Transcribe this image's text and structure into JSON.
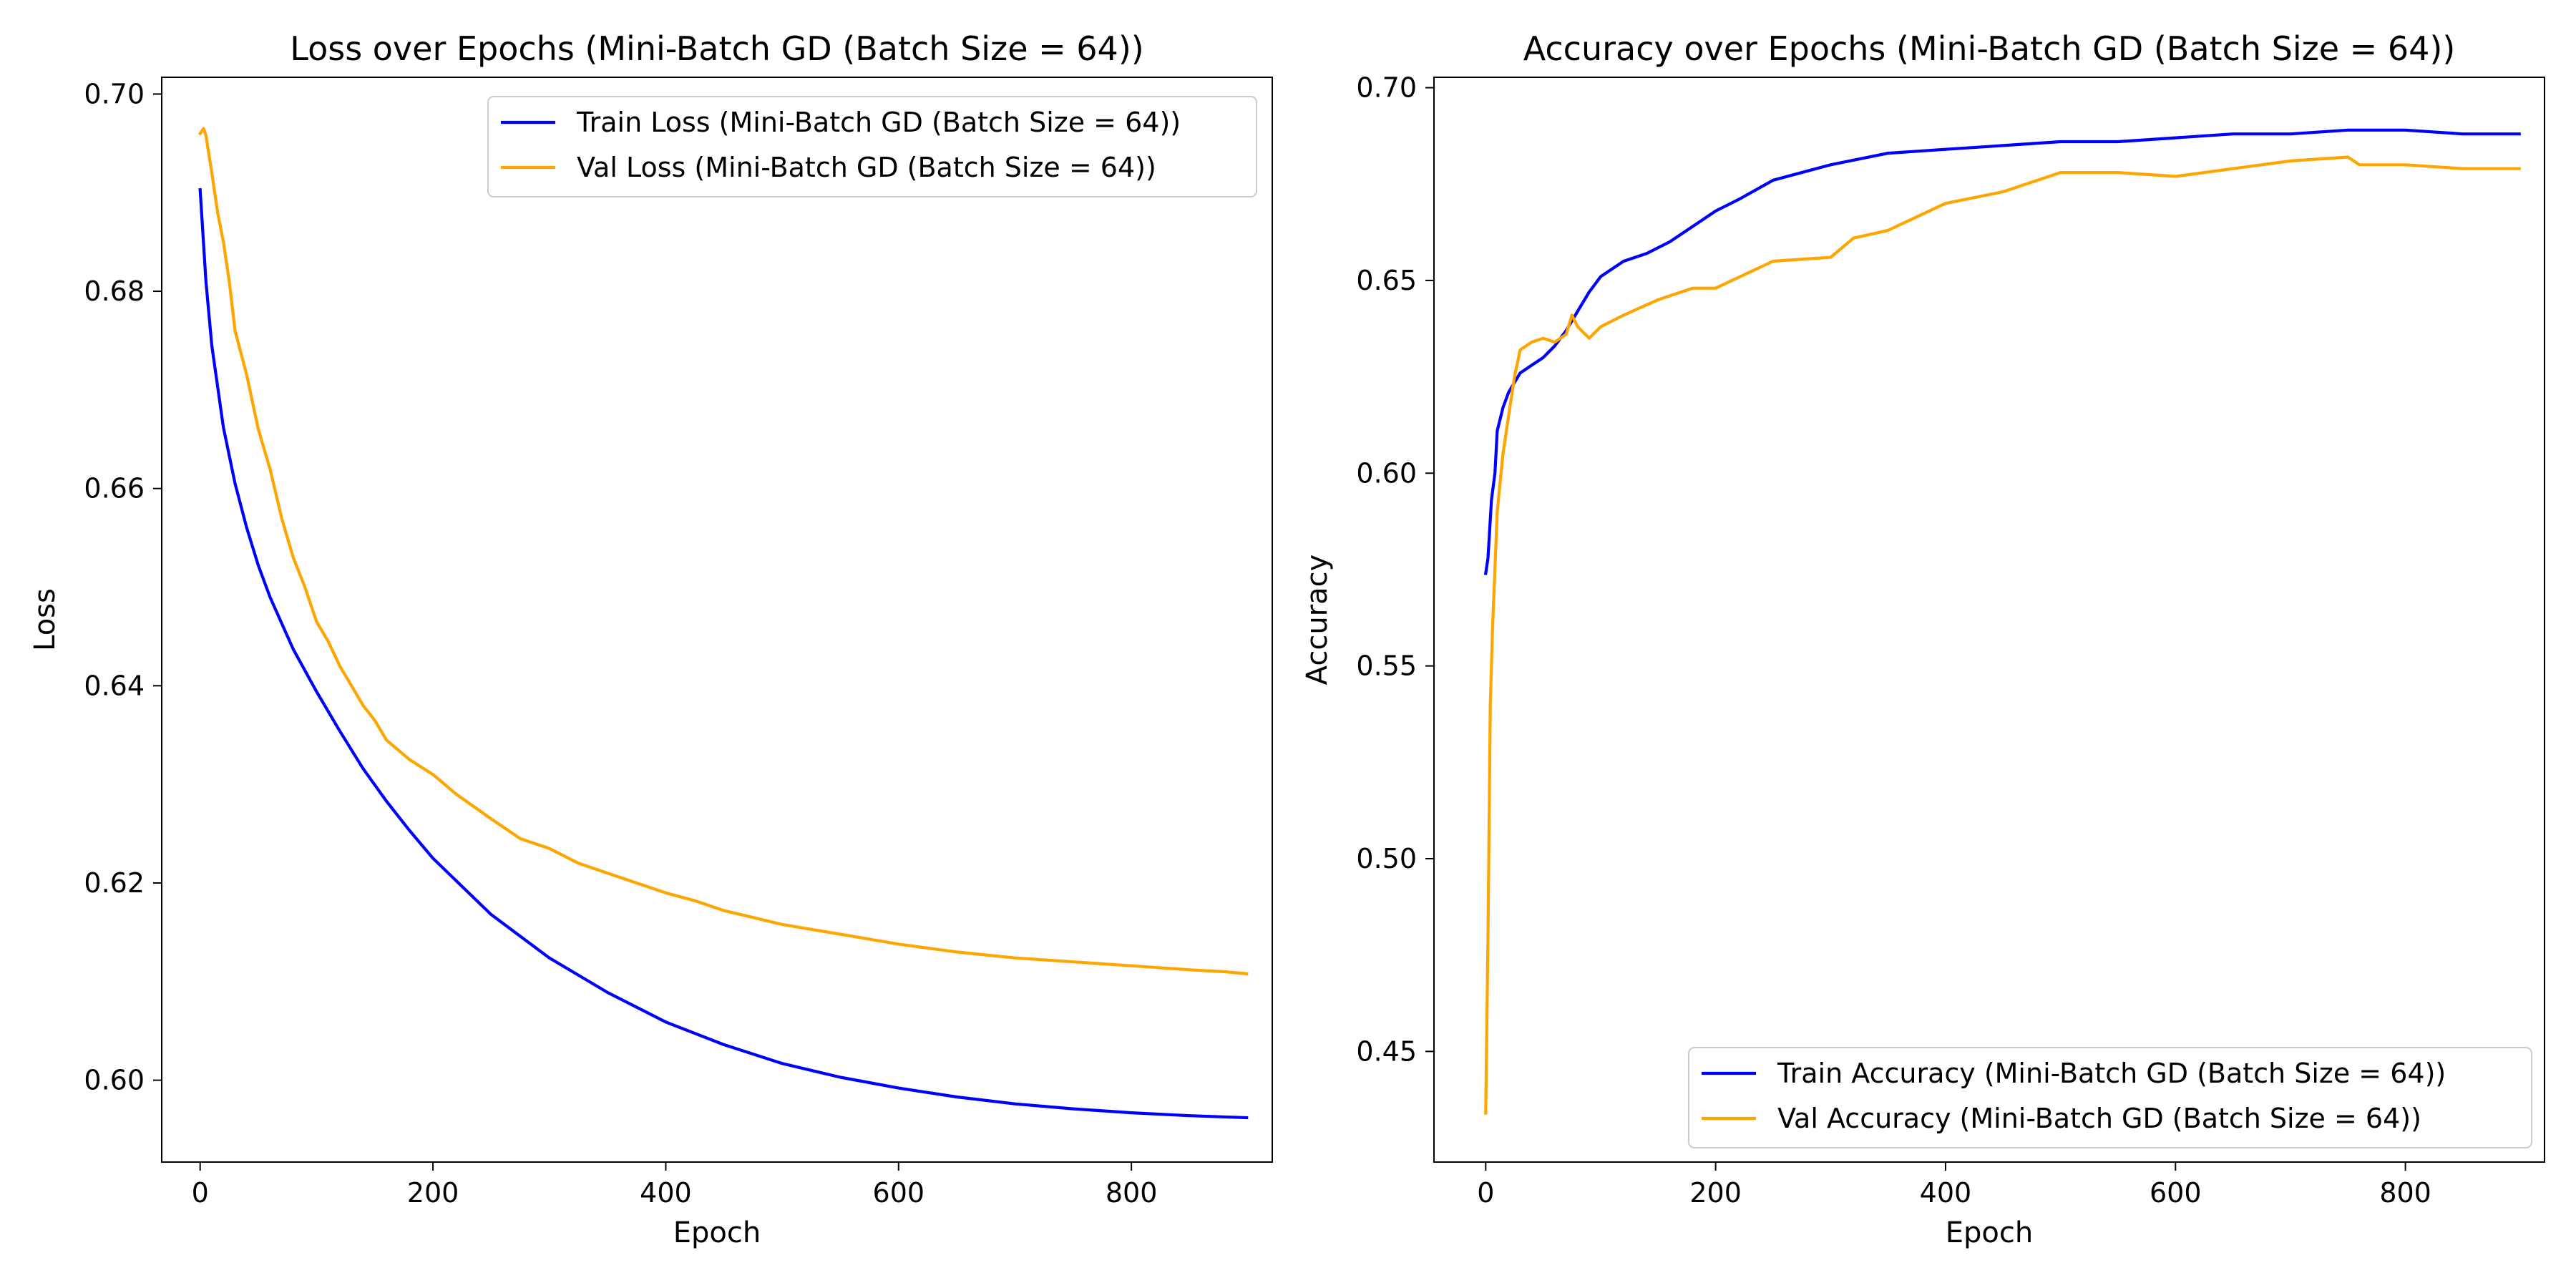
{
  "colors": {
    "train": "#0000ff",
    "val": "#ffa500",
    "axis": "#000000",
    "legend_border": "#cccccc"
  },
  "chart_data": [
    {
      "type": "line",
      "title": "Loss over Epochs (Mini-Batch GD (Batch Size = 64))",
      "xlabel": "Epoch",
      "ylabel": "Loss",
      "xlim": [
        -33,
        921
      ],
      "ylim": [
        0.5917,
        0.7017
      ],
      "xticks": [
        0,
        200,
        400,
        600,
        800
      ],
      "yticks": [
        0.6,
        0.62,
        0.64,
        0.66,
        0.68,
        0.7
      ],
      "ytick_decimals": 2,
      "grid": false,
      "legend": "top-right",
      "series": [
        {
          "name": "Train Loss (Mini-Batch GD (Batch Size = 64))",
          "color": "#0000ff",
          "x": [
            0,
            5,
            10,
            20,
            30,
            40,
            50,
            60,
            80,
            100,
            120,
            140,
            160,
            180,
            200,
            250,
            300,
            350,
            400,
            450,
            500,
            550,
            600,
            650,
            700,
            750,
            800,
            850,
            899
          ],
          "y": [
            0.6903,
            0.681,
            0.6745,
            0.6662,
            0.6605,
            0.656,
            0.6522,
            0.649,
            0.6437,
            0.6394,
            0.6354,
            0.6316,
            0.6283,
            0.6253,
            0.6225,
            0.6168,
            0.6124,
            0.6089,
            0.6059,
            0.6036,
            0.6017,
            0.6003,
            0.5992,
            0.5983,
            0.5976,
            0.5971,
            0.5967,
            0.5964,
            0.5962
          ]
        },
        {
          "name": "Val Loss (Mini-Batch GD (Batch Size = 64))",
          "color": "#ffa500",
          "x": [
            0,
            3,
            5,
            10,
            15,
            20,
            25,
            30,
            40,
            50,
            60,
            70,
            80,
            90,
            100,
            110,
            120,
            130,
            140,
            150,
            160,
            180,
            200,
            220,
            250,
            275,
            300,
            325,
            350,
            375,
            400,
            425,
            450,
            475,
            500,
            550,
            600,
            650,
            700,
            750,
            800,
            850,
            880,
            899
          ],
          "y": [
            0.696,
            0.6965,
            0.6958,
            0.692,
            0.688,
            0.685,
            0.681,
            0.676,
            0.6715,
            0.666,
            0.662,
            0.657,
            0.653,
            0.65,
            0.6465,
            0.6445,
            0.642,
            0.64,
            0.638,
            0.6365,
            0.6345,
            0.6325,
            0.631,
            0.629,
            0.6265,
            0.6245,
            0.6235,
            0.622,
            0.621,
            0.62,
            0.619,
            0.6182,
            0.6172,
            0.6165,
            0.6158,
            0.6148,
            0.6138,
            0.613,
            0.6124,
            0.612,
            0.6116,
            0.6112,
            0.611,
            0.6108
          ]
        }
      ]
    },
    {
      "type": "line",
      "title": "Accuracy over Epochs (Mini-Batch GD (Batch Size = 64))",
      "xlabel": "Epoch",
      "ylabel": "Accuracy",
      "xlim": [
        -45,
        921
      ],
      "ylim": [
        0.4213,
        0.7027
      ],
      "xticks": [
        0,
        200,
        400,
        600,
        800
      ],
      "yticks": [
        0.45,
        0.5,
        0.55,
        0.6,
        0.65,
        0.7
      ],
      "ytick_decimals": 2,
      "grid": false,
      "legend": "bottom-right",
      "series": [
        {
          "name": "Train Accuracy (Mini-Batch GD (Batch Size = 64))",
          "color": "#0000ff",
          "x": [
            0,
            2,
            5,
            8,
            10,
            15,
            20,
            30,
            40,
            50,
            60,
            70,
            80,
            90,
            100,
            120,
            140,
            160,
            180,
            200,
            220,
            250,
            300,
            350,
            400,
            450,
            500,
            550,
            600,
            650,
            700,
            750,
            800,
            850,
            899
          ],
          "y": [
            0.574,
            0.578,
            0.593,
            0.6,
            0.611,
            0.617,
            0.621,
            0.626,
            0.628,
            0.63,
            0.633,
            0.637,
            0.642,
            0.647,
            0.651,
            0.655,
            0.657,
            0.66,
            0.664,
            0.668,
            0.671,
            0.676,
            0.68,
            0.683,
            0.684,
            0.685,
            0.686,
            0.686,
            0.687,
            0.688,
            0.688,
            0.689,
            0.689,
            0.688,
            0.688
          ]
        },
        {
          "name": "Val Accuracy (Mini-Batch GD (Batch Size = 64))",
          "color": "#ffa500",
          "x": [
            0,
            2,
            4,
            6,
            10,
            15,
            20,
            25,
            30,
            40,
            50,
            60,
            70,
            75,
            80,
            90,
            100,
            120,
            150,
            180,
            200,
            250,
            300,
            320,
            350,
            400,
            450,
            500,
            550,
            600,
            650,
            700,
            750,
            760,
            800,
            850,
            899
          ],
          "y": [
            0.434,
            0.48,
            0.54,
            0.56,
            0.59,
            0.605,
            0.615,
            0.625,
            0.632,
            0.634,
            0.635,
            0.634,
            0.636,
            0.641,
            0.638,
            0.635,
            0.638,
            0.641,
            0.645,
            0.648,
            0.648,
            0.655,
            0.656,
            0.661,
            0.663,
            0.67,
            0.673,
            0.678,
            0.678,
            0.677,
            0.679,
            0.681,
            0.682,
            0.68,
            0.68,
            0.679,
            0.679
          ]
        }
      ]
    }
  ]
}
